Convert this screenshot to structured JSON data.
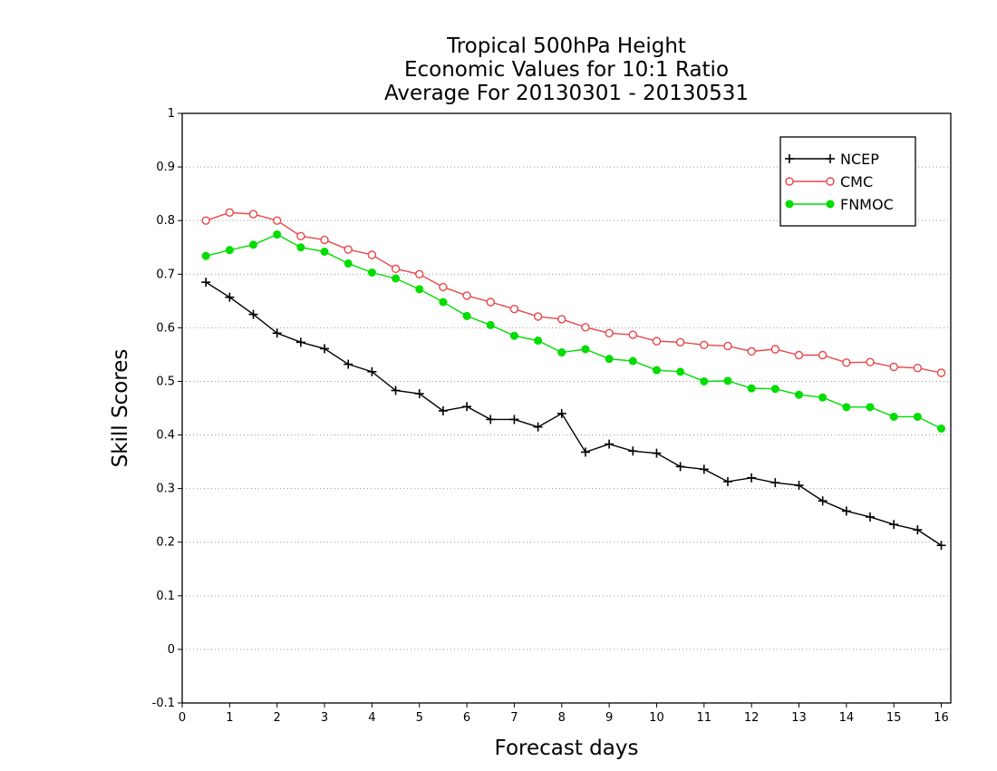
{
  "chart_data": {
    "type": "line",
    "title": [
      "Tropical 500hPa Height",
      "Economic Values for 10:1 Ratio",
      "Average For 20130301 - 20130531"
    ],
    "xlabel": "Forecast days",
    "ylabel": "Skill Scores",
    "xlim": [
      0,
      16.2
    ],
    "ylim": [
      -0.1,
      1
    ],
    "xticks": [
      0,
      1,
      2,
      3,
      4,
      5,
      6,
      7,
      8,
      9,
      10,
      11,
      12,
      13,
      14,
      15,
      16
    ],
    "xtick_labels": [
      "0",
      "1",
      "2",
      "3",
      "4",
      "5",
      "6",
      "7",
      "8",
      "9",
      "10",
      "11",
      "12",
      "13",
      "14",
      "15",
      "16"
    ],
    "yticks": [
      -0.1,
      0,
      0.1,
      0.2,
      0.3,
      0.4,
      0.5,
      0.6,
      0.7,
      0.8,
      0.9,
      1
    ],
    "ytick_labels": [
      "-0.1",
      "0",
      "0.1",
      "0.2",
      "0.3",
      "0.4",
      "0.5",
      "0.6",
      "0.7",
      "0.8",
      "0.9",
      "1"
    ],
    "grid": "horizontal dotted",
    "legend_position": "top-right",
    "x": [
      0.5,
      1,
      1.5,
      2,
      2.5,
      3,
      3.5,
      4,
      4.5,
      5,
      5.5,
      6,
      6.5,
      7,
      7.5,
      8,
      8.5,
      9,
      9.5,
      10,
      10.5,
      11,
      11.5,
      12,
      12.5,
      13,
      13.5,
      14,
      14.5,
      15,
      15.5,
      16
    ],
    "series": [
      {
        "name": "NCEP",
        "color": "#000000",
        "marker": "plus",
        "values": [
          0.685,
          0.657,
          0.625,
          0.59,
          0.573,
          0.561,
          0.532,
          0.518,
          0.483,
          0.477,
          0.445,
          0.453,
          0.429,
          0.429,
          0.415,
          0.44,
          0.368,
          0.383,
          0.37,
          0.366,
          0.341,
          0.336,
          0.313,
          0.32,
          0.311,
          0.306,
          0.277,
          0.258,
          0.247,
          0.233,
          0.223,
          0.194
        ]
      },
      {
        "name": "CMC",
        "color": "#e8474a",
        "marker": "open-circle",
        "values": [
          0.8,
          0.815,
          0.812,
          0.8,
          0.771,
          0.764,
          0.746,
          0.736,
          0.71,
          0.7,
          0.676,
          0.66,
          0.648,
          0.635,
          0.621,
          0.616,
          0.601,
          0.59,
          0.587,
          0.575,
          0.573,
          0.568,
          0.566,
          0.556,
          0.56,
          0.549,
          0.549,
          0.535,
          0.536,
          0.527,
          0.525,
          0.516
        ]
      },
      {
        "name": "FNMOC",
        "color": "#00dd00",
        "marker": "filled-circle",
        "values": [
          0.734,
          0.745,
          0.755,
          0.774,
          0.75,
          0.742,
          0.72,
          0.703,
          0.692,
          0.672,
          0.648,
          0.622,
          0.605,
          0.585,
          0.576,
          0.554,
          0.56,
          0.542,
          0.538,
          0.521,
          0.518,
          0.5,
          0.501,
          0.487,
          0.486,
          0.475,
          0.47,
          0.452,
          0.452,
          0.434,
          0.434,
          0.412
        ]
      }
    ]
  }
}
